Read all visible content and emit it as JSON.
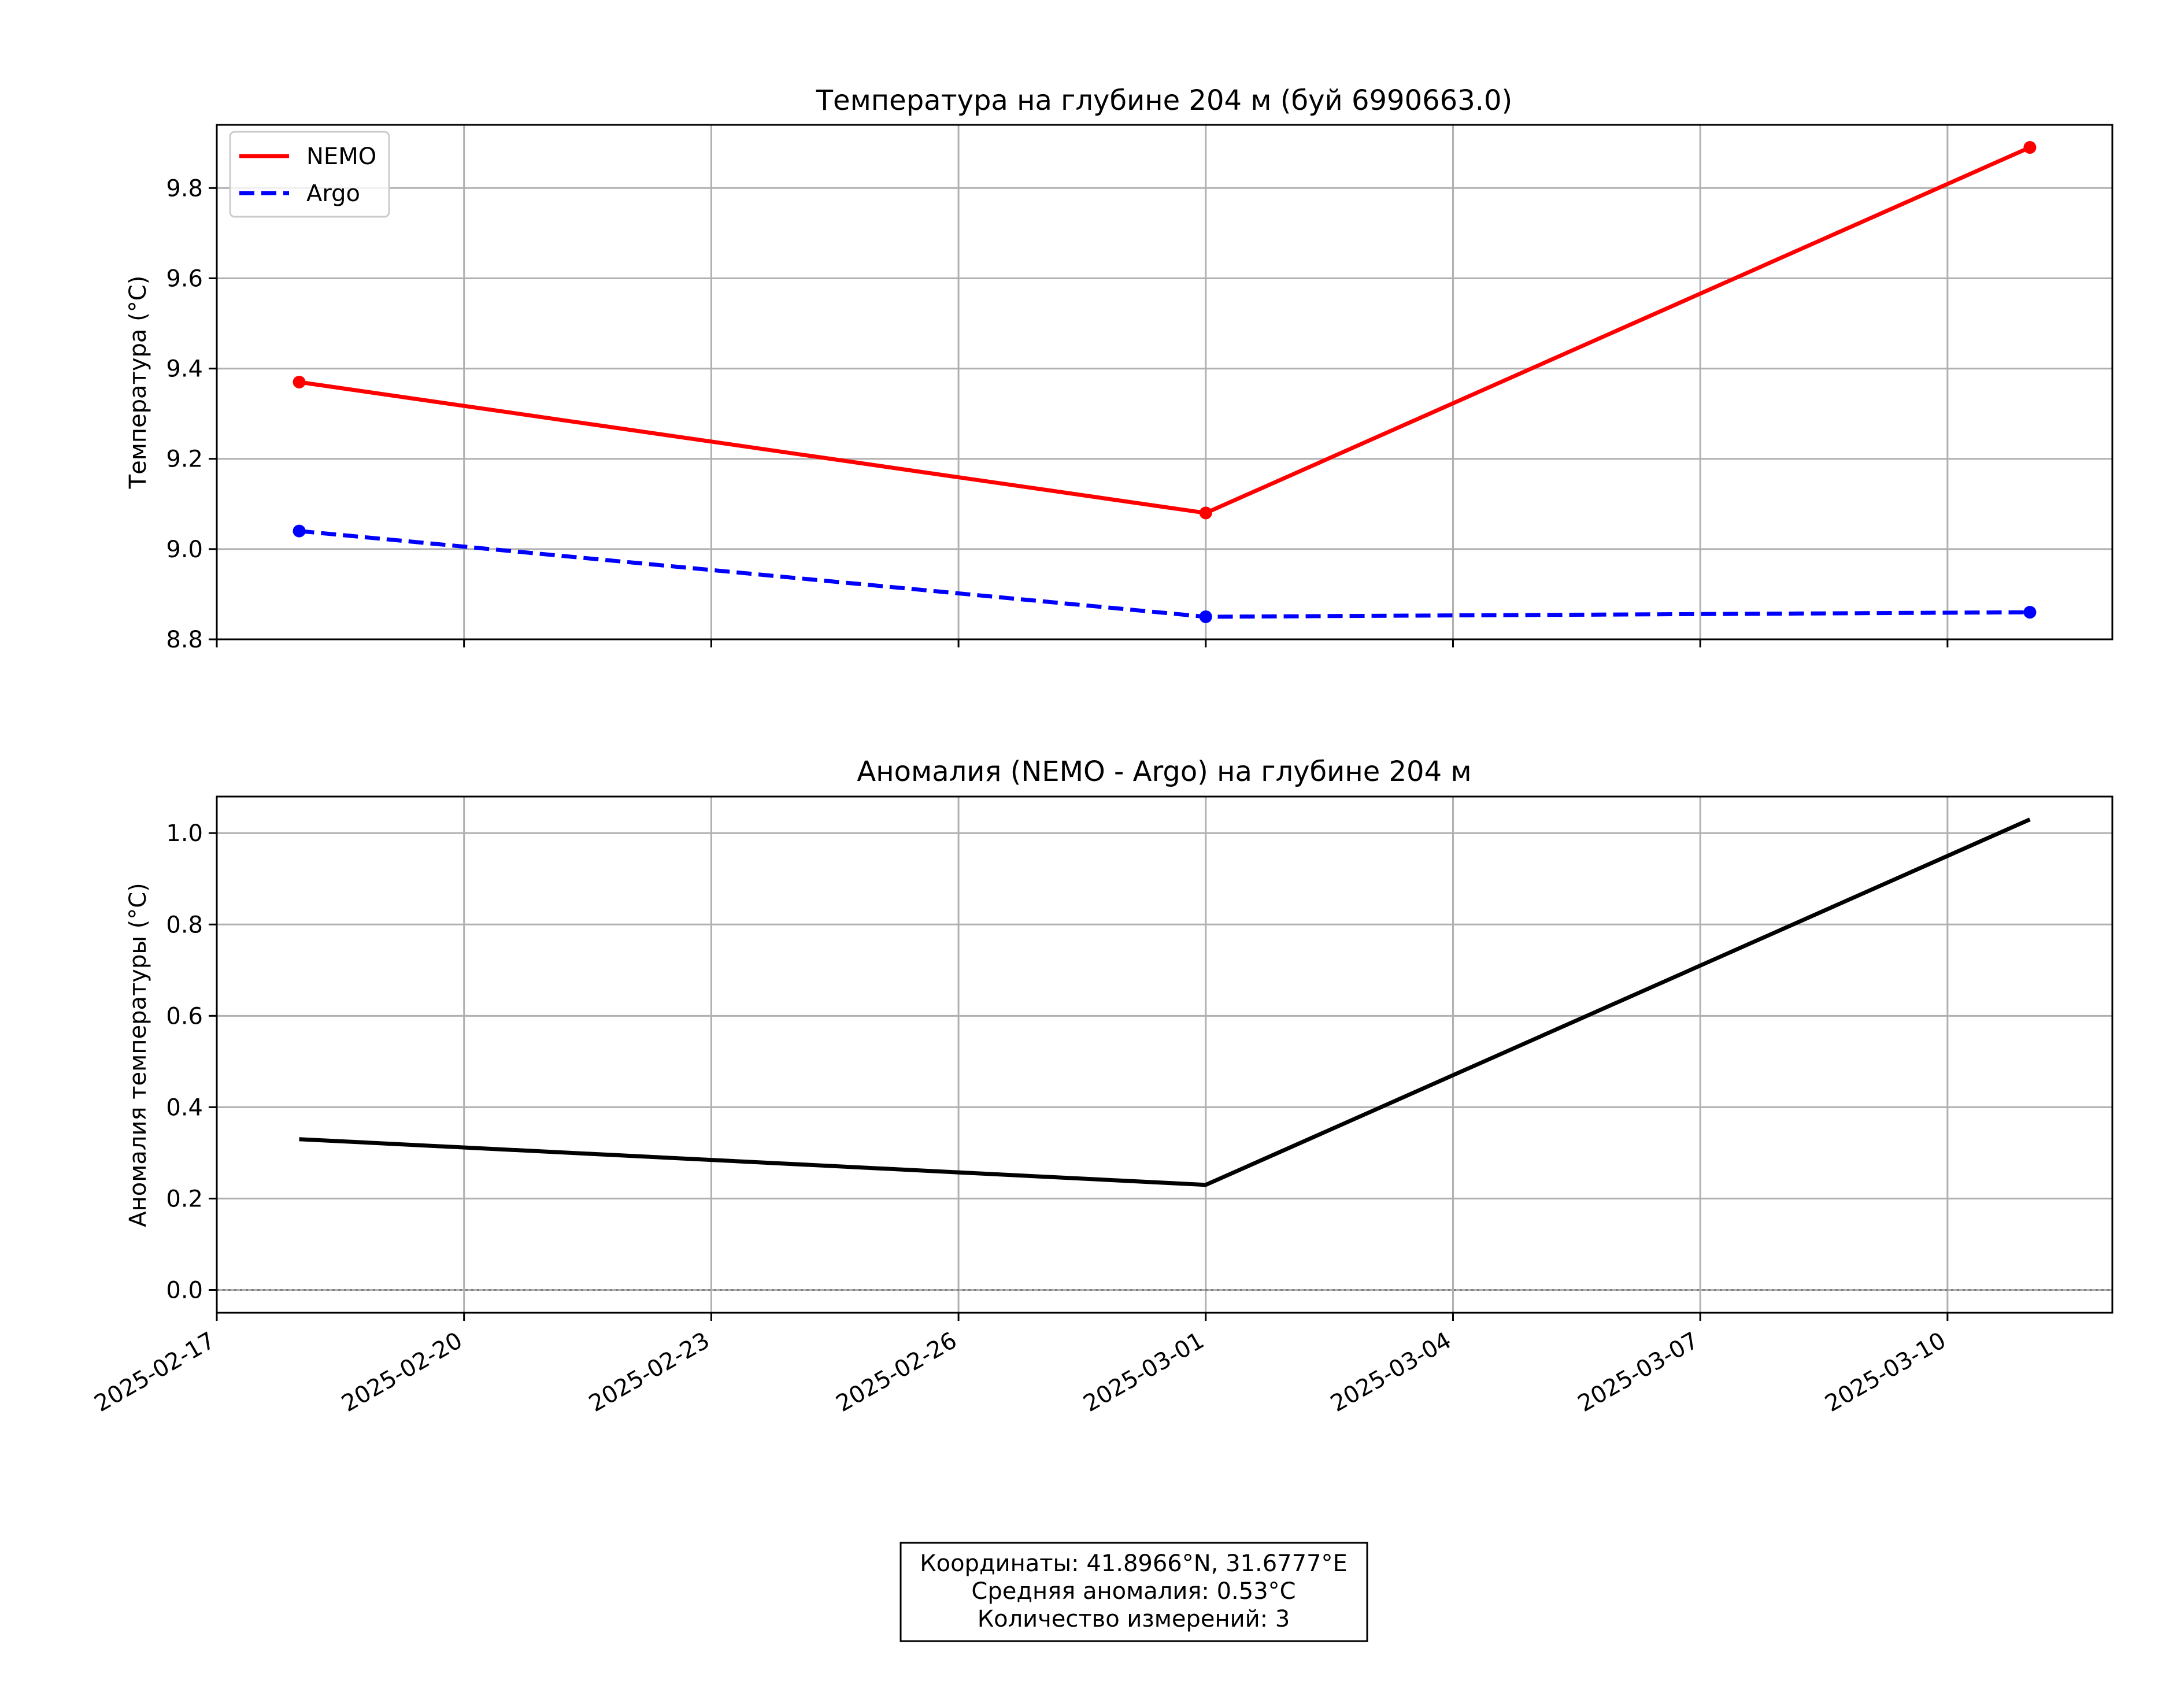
{
  "chart_data": [
    {
      "type": "line",
      "title": "Температура на глубине 204 м (буй 6990663.0)",
      "xlabel": "",
      "ylabel": "Температура (°C)",
      "x": [
        "2025-02-18",
        "2025-03-01",
        "2025-03-11"
      ],
      "xlim": [
        "2025-02-17",
        "2025-03-12"
      ],
      "ylim": [
        8.8,
        9.94
      ],
      "yticks": [
        "8.8",
        "9.0",
        "9.2",
        "9.4",
        "9.6",
        "9.8"
      ],
      "grid": true,
      "legend_position": "top-left",
      "series": [
        {
          "name": "NEMO",
          "values": [
            9.37,
            9.08,
            9.89
          ],
          "color": "#ff0000",
          "style": "solid",
          "markers": true
        },
        {
          "name": "Argo",
          "values": [
            9.04,
            8.85,
            8.86
          ],
          "color": "#0000ff",
          "style": "dashed",
          "markers": true
        }
      ]
    },
    {
      "type": "line",
      "title": "Аномалия (NEMO - Argo) на глубине 204 м",
      "xlabel": "",
      "ylabel": "Аномалия температуры (°C)",
      "x": [
        "2025-02-18",
        "2025-03-01",
        "2025-03-11"
      ],
      "xlim": [
        "2025-02-17",
        "2025-03-12"
      ],
      "ylim": [
        -0.05,
        1.08
      ],
      "yticks": [
        "0.0",
        "0.2",
        "0.4",
        "0.6",
        "0.8",
        "1.0"
      ],
      "xticks": [
        "2025-02-17",
        "2025-02-20",
        "2025-02-23",
        "2025-02-26",
        "2025-03-01",
        "2025-03-04",
        "2025-03-07",
        "2025-03-10"
      ],
      "grid": true,
      "zero_line": true,
      "series": [
        {
          "values": [
            0.33,
            0.23,
            1.03
          ],
          "color": "#000000",
          "style": "solid",
          "markers": false
        }
      ]
    }
  ],
  "info": {
    "coords": "Координаты: 41.8966°N, 31.6777°E",
    "mean_anomaly": "Средняя аномалия: 0.53°C",
    "count": "Количество измерений: 3"
  }
}
